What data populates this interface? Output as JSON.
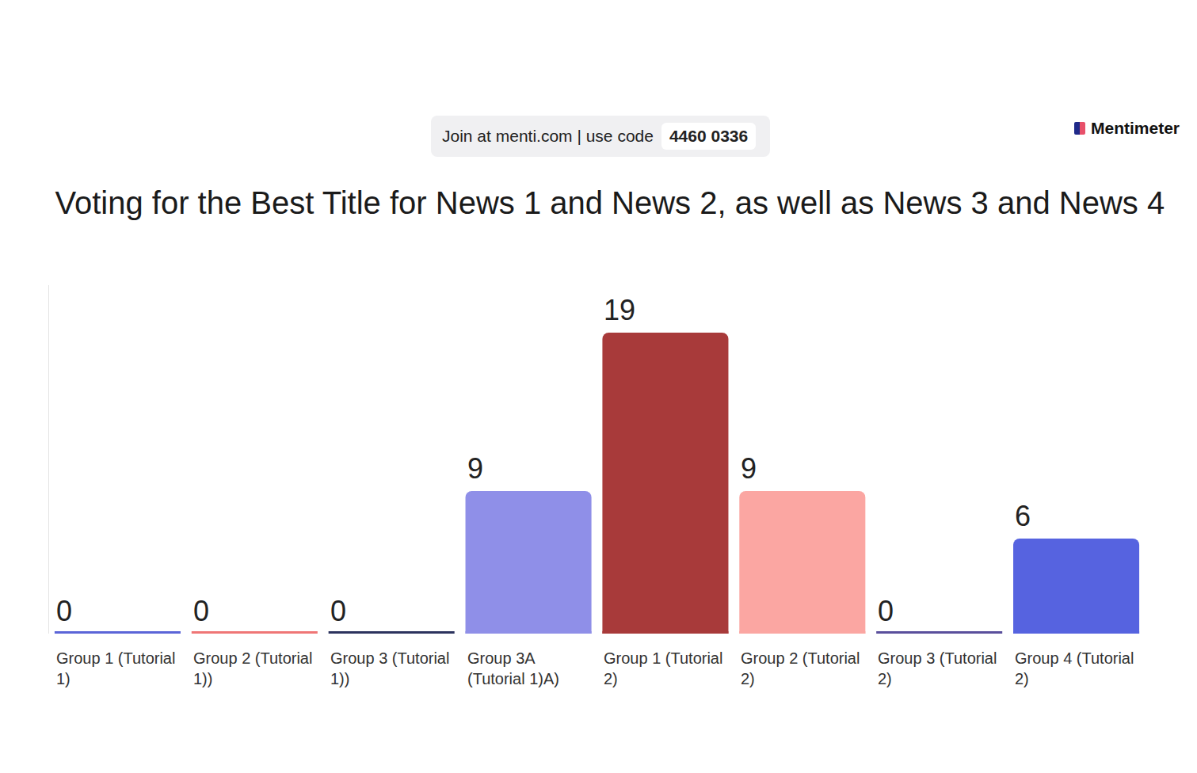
{
  "chart_data": {
    "type": "bar",
    "title": "Voting for the Best Title for News 1 and News 2, as well as News 3 and News 4",
    "annotations": [
      "Join at menti.com | use code",
      "4460 0336",
      "Mentimeter"
    ],
    "categories": [
      "Group 1 (Tutorial 1)",
      "Group 2 (Tutorial 1))",
      "Group 3 (Tutorial 1))",
      "Group 3A (Tutorial 1)A)",
      "Group 1 (Tutorial 2)",
      "Group 2 (Tutorial 2)",
      "Group 3 (Tutorial 2)",
      "Group 4 (Tutorial 2)"
    ],
    "values": [
      0,
      0,
      0,
      9,
      19,
      9,
      0,
      6
    ],
    "colors": [
      "#5b65d8",
      "#ef7676",
      "#2c335e",
      "#8f8fe8",
      "#a83a3a",
      "#fba6a2",
      "#5a4f9c",
      "#5663e0"
    ],
    "ylim": [
      0,
      22
    ],
    "grid": false,
    "data_labels": true,
    "tick_labels": false
  }
}
